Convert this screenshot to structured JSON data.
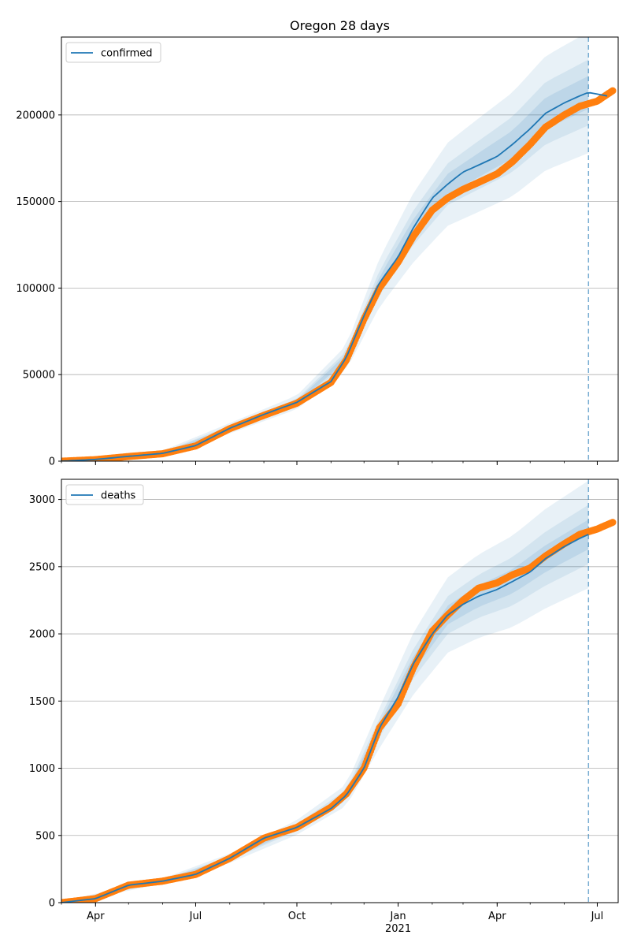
{
  "chart_data": [
    {
      "type": "line",
      "title": "Oregon 28 days",
      "xlabel": "",
      "ylabel": "",
      "ylim": [
        0,
        245000
      ],
      "y_ticks": [
        "0",
        "50000",
        "100000",
        "150000",
        "200000"
      ],
      "y_tick_values": [
        0,
        50000,
        100000,
        150000,
        200000
      ],
      "grid": true,
      "legend_position": "upper-left",
      "forecast_start": "2021-06-23",
      "series": [
        {
          "name": "confirmed",
          "kind": "model",
          "color": "#1f77b4",
          "x": [
            "2020-03-01",
            "2020-04-01",
            "2020-05-01",
            "2020-06-01",
            "2020-07-01",
            "2020-08-01",
            "2020-09-01",
            "2020-10-01",
            "2020-11-01",
            "2020-11-15",
            "2020-12-01",
            "2020-12-15",
            "2021-01-01",
            "2021-01-15",
            "2021-02-01",
            "2021-02-15",
            "2021-03-01",
            "2021-03-15",
            "2021-04-01",
            "2021-04-15",
            "2021-05-01",
            "2021-05-15",
            "2021-06-01",
            "2021-06-15",
            "2021-06-23",
            "2021-07-10"
          ],
          "y": [
            0,
            1000,
            2800,
            4500,
            9000,
            19000,
            27000,
            34000,
            46000,
            60000,
            84000,
            103000,
            118000,
            135000,
            152000,
            160000,
            167000,
            171000,
            176000,
            183000,
            192000,
            201000,
            207000,
            211000,
            213000,
            211000
          ]
        },
        {
          "name": "",
          "kind": "observed",
          "color": "#ff7f0e",
          "x": [
            "2020-03-01",
            "2020-04-01",
            "2020-05-01",
            "2020-06-01",
            "2020-07-01",
            "2020-08-01",
            "2020-09-01",
            "2020-10-01",
            "2020-11-01",
            "2020-11-15",
            "2020-12-01",
            "2020-12-15",
            "2021-01-01",
            "2021-01-15",
            "2021-02-01",
            "2021-02-15",
            "2021-03-01",
            "2021-03-15",
            "2021-04-01",
            "2021-04-15",
            "2021-05-01",
            "2021-05-15",
            "2021-06-01",
            "2021-06-15",
            "2021-07-01",
            "2021-07-15"
          ],
          "y": [
            0,
            900,
            2700,
            4300,
            8800,
            18800,
            26500,
            33500,
            45500,
            58500,
            82000,
            100000,
            115000,
            130000,
            145000,
            152000,
            157000,
            161000,
            166000,
            173000,
            183000,
            193000,
            200000,
            205000,
            208000,
            214000
          ]
        }
      ],
      "bands": {
        "x": [
          "2020-03-01",
          "2020-06-01",
          "2020-08-01",
          "2020-10-01",
          "2020-11-15",
          "2020-12-15",
          "2021-01-15",
          "2021-02-15",
          "2021-03-15",
          "2021-04-15",
          "2021-05-15",
          "2021-06-23"
        ],
        "mid": [
          0,
          4500,
          19000,
          34000,
          60000,
          103000,
          135000,
          160000,
          171000,
          183000,
          201000,
          213000
        ],
        "spread": [
          [
            300,
            800,
            1500,
            2000,
            3500,
            7000,
            10000,
            12000,
            14000,
            16000,
            18000,
            19000
          ],
          [
            600,
            1600,
            3000,
            4000,
            7000,
            14000,
            20000,
            24000,
            27000,
            30000,
            33000,
            35000
          ]
        ]
      }
    },
    {
      "type": "line",
      "title": "",
      "xlabel": "",
      "ylabel": "",
      "ylim": [
        0,
        3150
      ],
      "y_ticks": [
        "0",
        "500",
        "1000",
        "1500",
        "2000",
        "2500",
        "3000"
      ],
      "y_tick_values": [
        0,
        500,
        1000,
        1500,
        2000,
        2500,
        3000
      ],
      "grid": true,
      "legend_position": "upper-left",
      "forecast_start": "2021-06-23",
      "x_ticks": [
        "Apr",
        "Jul",
        "Oct",
        "Jan",
        "Apr",
        "Jul"
      ],
      "x_tick_dates": [
        "2020-04-01",
        "2020-07-01",
        "2020-10-01",
        "2021-01-01",
        "2021-04-01",
        "2021-07-01"
      ],
      "x_year_label": "2021",
      "series": [
        {
          "name": "deaths",
          "kind": "model",
          "color": "#1f77b4",
          "x": [
            "2020-03-01",
            "2020-04-01",
            "2020-05-01",
            "2020-06-01",
            "2020-07-01",
            "2020-08-01",
            "2020-09-01",
            "2020-10-01",
            "2020-11-01",
            "2020-11-15",
            "2020-12-01",
            "2020-12-15",
            "2021-01-01",
            "2021-01-15",
            "2021-02-01",
            "2021-02-15",
            "2021-03-01",
            "2021-03-15",
            "2021-04-01",
            "2021-04-15",
            "2021-05-01",
            "2021-05-15",
            "2021-06-01",
            "2021-06-15",
            "2021-06-23"
          ],
          "y": [
            0,
            30,
            130,
            160,
            210,
            330,
            480,
            560,
            700,
            800,
            1000,
            1300,
            1530,
            1780,
            2000,
            2140,
            2220,
            2280,
            2330,
            2390,
            2460,
            2560,
            2650,
            2710,
            2740
          ]
        },
        {
          "name": "",
          "kind": "observed",
          "color": "#ff7f0e",
          "x": [
            "2020-03-01",
            "2020-04-01",
            "2020-05-01",
            "2020-06-01",
            "2020-07-01",
            "2020-08-01",
            "2020-09-01",
            "2020-10-01",
            "2020-11-01",
            "2020-11-15",
            "2020-12-01",
            "2020-12-15",
            "2021-01-01",
            "2021-01-15",
            "2021-02-01",
            "2021-02-15",
            "2021-03-01",
            "2021-03-15",
            "2021-04-01",
            "2021-04-15",
            "2021-05-01",
            "2021-05-15",
            "2021-06-01",
            "2021-06-15",
            "2021-07-01",
            "2021-07-15"
          ],
          "y": [
            0,
            30,
            130,
            160,
            210,
            330,
            480,
            560,
            710,
            810,
            1000,
            1300,
            1480,
            1750,
            2020,
            2140,
            2250,
            2340,
            2380,
            2440,
            2490,
            2580,
            2670,
            2740,
            2780,
            2830
          ]
        }
      ],
      "bands": {
        "x": [
          "2020-03-01",
          "2020-06-01",
          "2020-08-01",
          "2020-10-01",
          "2020-11-15",
          "2020-12-15",
          "2021-01-15",
          "2021-02-15",
          "2021-03-15",
          "2021-04-15",
          "2021-05-15",
          "2021-06-23"
        ],
        "mid": [
          0,
          160,
          330,
          560,
          800,
          1300,
          1780,
          2140,
          2280,
          2390,
          2560,
          2740
        ],
        "spread": [
          [
            5,
            10,
            15,
            25,
            40,
            70,
            110,
            140,
            160,
            180,
            200,
            220
          ],
          [
            10,
            20,
            35,
            55,
            80,
            150,
            230,
            280,
            310,
            340,
            370,
            400
          ]
        ]
      }
    }
  ]
}
